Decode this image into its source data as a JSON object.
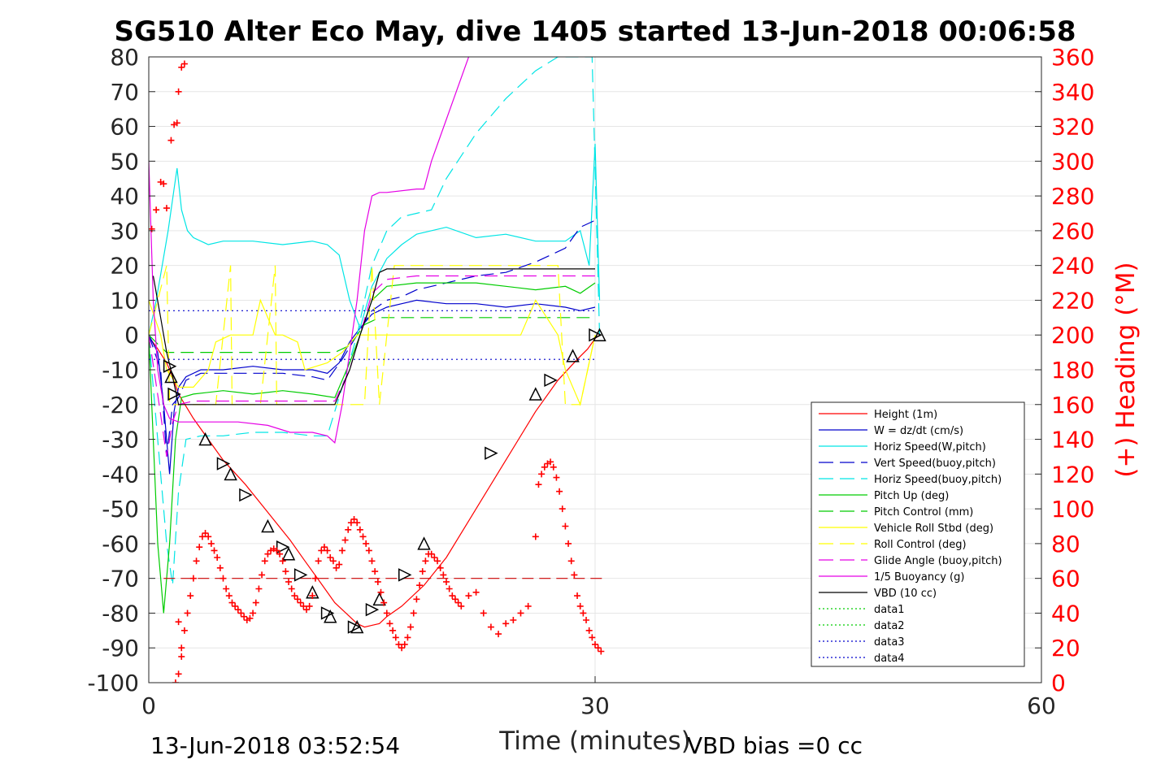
{
  "chart_data": {
    "type": "line",
    "title": "SG510 Alter Eco May, dive 1405 started 13-Jun-2018 00:06:58",
    "xlabel": "Time (minutes)",
    "ylabel_right": "(+) Heading (°M)",
    "footer_left": "13-Jun-2018 03:52:54",
    "footer_right": "VBD bias =0 cc",
    "xlim": [
      0,
      60
    ],
    "ylim": [
      -100,
      80
    ],
    "ylim_right": [
      0,
      360
    ],
    "xticks": [
      "0",
      "30",
      "60"
    ],
    "yticks": [
      "80",
      "70",
      "60",
      "50",
      "40",
      "30",
      "20",
      "10",
      "0",
      "-10",
      "-20",
      "-30",
      "-40",
      "-50",
      "-60",
      "-70",
      "-80",
      "-90",
      "-100"
    ],
    "yticks_right": [
      "360",
      "340",
      "320",
      "300",
      "280",
      "260",
      "240",
      "220",
      "200",
      "180",
      "160",
      "140",
      "120",
      "100",
      "80",
      "60",
      "40",
      "20",
      "0"
    ],
    "legend_position": "lower-right",
    "series": [
      {
        "name": "Height (1m)",
        "color": "#ff0000",
        "style": "solid",
        "x": [
          0.1,
          0.6,
          1.2,
          1.6,
          2.0,
          3.0,
          4.0,
          5.0,
          6.5,
          8.0,
          9.5,
          10.5,
          11.5,
          12.5,
          13.5,
          14.0,
          14.5,
          15.0,
          15.5,
          16.0,
          17.0,
          18.5,
          20.0,
          22.0,
          24.0,
          26.0,
          27.5,
          28.8,
          29.5,
          30.0,
          30.3
        ],
        "y": [
          -1,
          -4,
          -8,
          -12,
          -17,
          -24,
          -30,
          -36,
          -43,
          -51,
          -59,
          -65,
          -71,
          -77,
          -81,
          -83,
          -84,
          -83.5,
          -83,
          -81,
          -78,
          -72,
          -64,
          -50,
          -36,
          -22,
          -13,
          -7,
          -4,
          -1,
          0
        ]
      },
      {
        "name": "W = dz/dt (cm/s)",
        "color": "#0000cc",
        "style": "solid",
        "x": [
          0,
          0.6,
          1.0,
          1.4,
          1.7,
          2.0,
          2.5,
          3.5,
          5,
          7,
          9,
          11,
          12,
          12.8,
          13.5,
          14.2,
          15,
          16,
          17,
          18,
          20,
          22,
          24,
          26,
          28,
          29,
          30
        ],
        "y": [
          0,
          -5,
          -20,
          -40,
          -22,
          -15,
          -12,
          -10,
          -10,
          -9,
          -10,
          -10,
          -11,
          -8,
          -2,
          2,
          6,
          8,
          9,
          10,
          9,
          9,
          8,
          9,
          8,
          7,
          8
        ]
      },
      {
        "name": "Horiz Speed(W,pitch)",
        "color": "#00e5e5",
        "style": "solid",
        "x": [
          0,
          0.5,
          0.9,
          1.3,
          1.7,
          1.9,
          2.2,
          2.6,
          3,
          4,
          5,
          7,
          9,
          11,
          12,
          12.8,
          13.5,
          14.2,
          15,
          16,
          17,
          18,
          20,
          22,
          24,
          26,
          28,
          29,
          29.6,
          30.0,
          30.3
        ],
        "y": [
          0,
          10,
          20,
          30,
          42,
          48,
          36,
          30,
          28,
          26,
          27,
          27,
          26,
          27,
          26,
          23,
          10,
          2,
          14,
          22,
          26,
          29,
          31,
          28,
          29,
          27,
          27,
          30,
          20,
          55,
          10
        ]
      },
      {
        "name": "Vert Speed(buoy,pitch)",
        "color": "#0000cc",
        "style": "dashed",
        "x": [
          0,
          0.8,
          1.2,
          1.6,
          2.0,
          2.5,
          3.5,
          5,
          7,
          9,
          11,
          12,
          13,
          14,
          15,
          16,
          17,
          18,
          20,
          22,
          24,
          26,
          28,
          29,
          30
        ],
        "y": [
          0,
          -10,
          -35,
          -20,
          -18,
          -13,
          -11,
          -11,
          -11,
          -11,
          -12,
          -13,
          -7,
          0,
          7,
          10,
          11,
          13,
          15,
          17,
          18,
          21,
          25,
          31,
          33
        ]
      },
      {
        "name": "Horiz Speed(buoy,pitch)",
        "color": "#00e5e5",
        "style": "dashed",
        "x": [
          0,
          0.8,
          1.2,
          1.6,
          2.0,
          2.5,
          3.5,
          5,
          7,
          9,
          11,
          12,
          13,
          14,
          15,
          16,
          17,
          18,
          19,
          20,
          22,
          24,
          26,
          27.5,
          29,
          29.8,
          30.3
        ],
        "y": [
          0,
          -40,
          -60,
          -72,
          -45,
          -30,
          -29,
          -29,
          -28,
          -28,
          -29,
          -29,
          -15,
          0,
          20,
          30,
          34,
          35,
          36,
          45,
          58,
          68,
          76,
          80,
          80,
          80,
          0
        ]
      },
      {
        "name": "Pitch Up (deg)",
        "color": "#00cc00",
        "style": "solid",
        "x": [
          0,
          0.6,
          1.0,
          1.4,
          1.8,
          2.2,
          3,
          5,
          7,
          9,
          11,
          12.5,
          13.5,
          14.2,
          15,
          16,
          18,
          20,
          22,
          24,
          26,
          28,
          29,
          30
        ],
        "y": [
          0,
          -60,
          -80,
          -60,
          -30,
          -18,
          -17,
          -16,
          -17,
          -16,
          -17,
          -18,
          -8,
          0,
          10,
          14,
          15,
          15,
          15,
          14,
          13,
          14,
          12,
          15
        ]
      },
      {
        "name": "Pitch Control (mm)",
        "color": "#00cc00",
        "style": "dashed",
        "x": [
          0,
          0.7,
          1.2,
          2.0,
          3,
          5,
          8,
          11,
          12.5,
          13.5,
          14.5,
          15.5,
          18,
          22,
          26,
          30
        ],
        "y": [
          0,
          -3,
          -5,
          -5,
          -5,
          -5,
          -5,
          -5,
          -5,
          -3,
          3,
          5,
          5,
          5,
          5,
          5
        ]
      },
      {
        "name": "Vehicle Roll Stbd (deg)",
        "color": "#ffff00",
        "style": "solid",
        "x": [
          0,
          0.8,
          1.2,
          2.0,
          3,
          4,
          4.5,
          5.5,
          6,
          7,
          7.5,
          8.5,
          9,
          10,
          10.5,
          12,
          13,
          14,
          15,
          16,
          17,
          18,
          19,
          20,
          22,
          24,
          25,
          26,
          27.5,
          28,
          29,
          30
        ],
        "y": [
          10,
          0,
          -10,
          -15,
          -15,
          -10,
          -2,
          0,
          0,
          0,
          10,
          0,
          0,
          -2,
          -10,
          -8,
          -5,
          0,
          0,
          0,
          0,
          0,
          0,
          0,
          0,
          0,
          0,
          10,
          0,
          -10,
          -20,
          0
        ]
      },
      {
        "name": "Roll Control (deg)",
        "color": "#ffff00",
        "style": "dashed",
        "x": [
          0,
          1.2,
          1.4,
          2.5,
          3.2,
          4.5,
          5.5,
          5.6,
          6.5,
          7.5,
          8.5,
          8.6,
          9.5,
          10.5,
          11.5,
          12,
          13,
          14.5,
          15,
          15.5,
          16.5,
          17.5,
          18.5,
          19,
          20,
          24,
          26,
          27.5,
          28,
          29,
          30
        ],
        "y": [
          0,
          20,
          -20,
          -20,
          -20,
          -20,
          20,
          -20,
          -20,
          -20,
          20,
          -20,
          -20,
          -20,
          -20,
          -20,
          -20,
          -20,
          20,
          -20,
          20,
          20,
          20,
          20,
          20,
          20,
          20,
          20,
          -20,
          -20,
          0
        ]
      },
      {
        "name": "Glide Angle (buoy,pitch)",
        "color": "#e500e5",
        "style": "dashed",
        "x": [
          0,
          0.7,
          1.2,
          1.6,
          2.0,
          3,
          5,
          7,
          9,
          11,
          12.5,
          13.5,
          14.2,
          15,
          16,
          18,
          20,
          22,
          24,
          26,
          28,
          30
        ],
        "y": [
          0,
          -20,
          -35,
          -25,
          -20,
          -19,
          -19,
          -19,
          -19,
          -19,
          -19,
          -10,
          0,
          12,
          16,
          17,
          17,
          17,
          17,
          17,
          17,
          17
        ]
      },
      {
        "name": "1/5 Buoyancy (g)",
        "color": "#e500e5",
        "style": "solid",
        "x": [
          0,
          0.3,
          0.6,
          1.0,
          1.4,
          2.0,
          4,
          6,
          8,
          9.5,
          11,
          12,
          12.5,
          13,
          13.5,
          14,
          14.5,
          15,
          15.5,
          16,
          18,
          18.5,
          19,
          20,
          21.5
        ],
        "y": [
          50,
          10,
          -10,
          -20,
          -24,
          -25,
          -25,
          -25,
          -26,
          -28,
          -28,
          -29,
          -31,
          -20,
          -5,
          10,
          30,
          40,
          41,
          41,
          42,
          42,
          50,
          62,
          80
        ]
      },
      {
        "name": "VBD (10 cc)",
        "color": "#000000",
        "style": "solid",
        "x": [
          0.3,
          0.8,
          1.2,
          1.6,
          2.0,
          4,
          8,
          12,
          12.5,
          13.5,
          14.2,
          15,
          15.5,
          16,
          18,
          22,
          26,
          30
        ],
        "y": [
          17,
          5,
          -5,
          -12,
          -20,
          -20,
          -20,
          -20,
          -20,
          -10,
          0,
          10,
          18,
          19,
          19,
          19,
          19,
          19
        ]
      },
      {
        "name": "data1",
        "color": "#00cc00",
        "style": "dotted",
        "x": [],
        "y": []
      },
      {
        "name": "data2",
        "color": "#00cc00",
        "style": "dotted",
        "x": [],
        "y": []
      },
      {
        "name": "data3",
        "color": "#0000cc",
        "style": "dotted",
        "x": [
          0,
          30
        ],
        "y": [
          7,
          7
        ]
      },
      {
        "name": "data4",
        "color": "#0000cc",
        "style": "dotted",
        "x": [
          0,
          30
        ],
        "y": [
          -7,
          -7
        ]
      }
    ],
    "reference_lines": [
      {
        "axis": "right",
        "value": 60,
        "color": "#cc0000",
        "style": "dashed",
        "x": [
          1,
          30.5
        ]
      }
    ],
    "markers": {
      "name": "Height markers",
      "color": "#000000",
      "symbol": "triangle",
      "x": [
        1.4,
        1.5,
        1.7,
        3.8,
        5.0,
        5.5,
        6.5,
        8.0,
        9.0,
        9.4,
        10.2,
        11.0,
        12.0,
        12.2,
        13.8,
        14.0,
        15.0,
        15.5,
        17.2,
        18.5,
        23.0,
        26.0,
        27.0,
        28.5,
        30.0,
        30.3
      ],
      "y": [
        -9,
        -12,
        -17,
        -30,
        -37,
        -40,
        -46,
        -55,
        -61,
        -63,
        -69,
        -74,
        -80,
        -81,
        -84,
        -84,
        -79,
        -76,
        -69,
        -60,
        -34,
        -17,
        -13,
        -6,
        0,
        0
      ]
    },
    "heading_points": {
      "name": "(+) Heading (°M)",
      "color": "#ff0000",
      "symbol": "plus",
      "axis": "right",
      "x": [
        0.2,
        0.5,
        0.8,
        1.0,
        1.2,
        1.5,
        1.7,
        1.9,
        2.0,
        2.2,
        2.4,
        2.0,
        1.8,
        2.0,
        2.2,
        2.2,
        2.4,
        2.6,
        2.8,
        3.0,
        3.2,
        3.4,
        3.6,
        3.8,
        4.0,
        4.2,
        4.4,
        4.6,
        4.8,
        5.0,
        5.2,
        5.4,
        5.6,
        5.8,
        6.0,
        6.2,
        6.4,
        6.6,
        6.8,
        7.0,
        7.2,
        7.4,
        7.6,
        7.8,
        8.0,
        8.2,
        8.4,
        8.6,
        8.8,
        9.0,
        9.2,
        9.4,
        9.6,
        9.8,
        10.0,
        10.2,
        10.4,
        10.6,
        10.8,
        11.0,
        11.2,
        11.4,
        11.6,
        11.8,
        12.0,
        12.2,
        12.4,
        12.6,
        12.8,
        13.0,
        13.2,
        13.4,
        13.6,
        13.8,
        14.0,
        14.2,
        14.4,
        14.6,
        14.8,
        15.0,
        15.2,
        15.4,
        15.6,
        15.8,
        16.0,
        16.2,
        16.4,
        16.6,
        16.8,
        17.0,
        17.2,
        17.4,
        17.6,
        17.8,
        18.0,
        18.2,
        18.4,
        18.6,
        18.8,
        19.0,
        19.2,
        19.4,
        19.6,
        19.8,
        20.0,
        20.2,
        20.4,
        20.6,
        20.8,
        21.0,
        21.5,
        22.0,
        22.5,
        23.0,
        23.5,
        24.0,
        24.5,
        25.0,
        25.5,
        26.0,
        26.2,
        26.4,
        26.6,
        26.8,
        27.0,
        27.2,
        27.4,
        27.6,
        27.8,
        28.0,
        28.2,
        28.4,
        28.6,
        28.8,
        29.0,
        29.2,
        29.4,
        29.6,
        29.8,
        30.0,
        30.2,
        30.4
      ],
      "y": [
        261,
        272,
        288,
        287,
        273,
        312,
        321,
        322,
        340,
        354,
        356,
        35,
        0,
        5,
        15,
        20,
        30,
        40,
        50,
        60,
        70,
        78,
        84,
        86,
        84,
        80,
        76,
        72,
        66,
        60,
        54,
        50,
        46,
        44,
        42,
        40,
        38,
        36,
        37,
        40,
        46,
        54,
        62,
        70,
        74,
        76,
        77,
        76,
        74,
        70,
        64,
        58,
        54,
        50,
        48,
        46,
        44,
        42,
        44,
        50,
        60,
        70,
        76,
        78,
        76,
        72,
        70,
        66,
        68,
        76,
        82,
        88,
        92,
        94,
        92,
        88,
        84,
        80,
        76,
        70,
        64,
        58,
        52,
        46,
        40,
        34,
        30,
        26,
        22,
        20,
        22,
        26,
        32,
        40,
        48,
        56,
        64,
        70,
        74,
        74,
        72,
        70,
        66,
        62,
        58,
        54,
        50,
        48,
        46,
        44,
        50,
        52,
        40,
        32,
        28,
        34,
        36,
        40,
        44,
        84,
        114,
        120,
        124,
        126,
        127,
        124,
        118,
        110,
        100,
        90,
        80,
        70,
        62,
        50,
        44,
        40,
        36,
        30,
        26,
        22,
        20,
        18
      ]
    }
  },
  "legend": {
    "entries": [
      {
        "label": "Height (1m)",
        "color": "#ff0000",
        "style": "solid"
      },
      {
        "label": "W = dz/dt (cm/s)",
        "color": "#0000cc",
        "style": "solid"
      },
      {
        "label": "Horiz Speed(W,pitch)",
        "color": "#00e5e5",
        "style": "solid"
      },
      {
        "label": "Vert Speed(buoy,pitch)",
        "color": "#0000cc",
        "style": "dashed"
      },
      {
        "label": "Horiz Speed(buoy,pitch)",
        "color": "#00e5e5",
        "style": "dashed"
      },
      {
        "label": "Pitch Up (deg)",
        "color": "#00cc00",
        "style": "solid"
      },
      {
        "label": "Pitch Control (mm)",
        "color": "#00cc00",
        "style": "dashed"
      },
      {
        "label": "Vehicle Roll Stbd (deg)",
        "color": "#ffff00",
        "style": "solid"
      },
      {
        "label": "Roll Control (deg)",
        "color": "#ffff00",
        "style": "dashed"
      },
      {
        "label": "Glide Angle (buoy,pitch)",
        "color": "#e500e5",
        "style": "dashed"
      },
      {
        "label": "1/5 Buoyancy (g)",
        "color": "#e500e5",
        "style": "solid"
      },
      {
        "label": "VBD (10 cc)",
        "color": "#000000",
        "style": "solid"
      },
      {
        "label": "data1",
        "color": "#00cc00",
        "style": "dotted"
      },
      {
        "label": "data2",
        "color": "#00cc00",
        "style": "dotted"
      },
      {
        "label": "data3",
        "color": "#0000cc",
        "style": "dotted"
      },
      {
        "label": "data4",
        "color": "#0000cc",
        "style": "dotted"
      }
    ]
  }
}
